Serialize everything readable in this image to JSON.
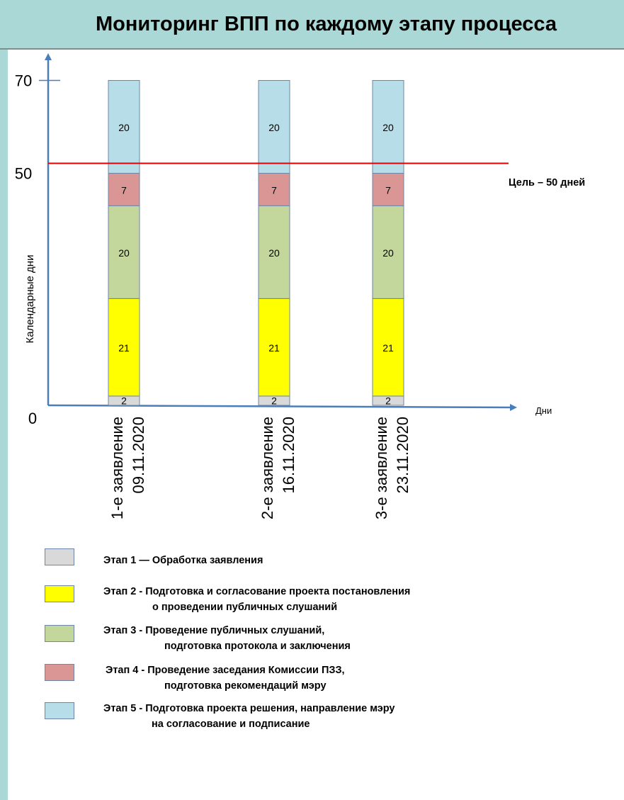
{
  "title": "Мониторинг ВПП по каждому этапу процесса",
  "chart_data": {
    "type": "bar",
    "stacked": true,
    "title": "Мониторинг ВПП по каждому этапу процесса",
    "xlabel": "Дни",
    "ylabel": "Календарные  дни",
    "ylim": [
      0,
      70
    ],
    "yticks": [
      "0",
      "50",
      "70"
    ],
    "grid": false,
    "categories": [
      "1-е заявление\n09.11.2020",
      "2-е заявление\n16.11.2020",
      "3-е заявление\n23.11.2020"
    ],
    "series": [
      {
        "name": "Этап 1 — Обработка заявления",
        "color": "#d9d9d9",
        "values": [
          2,
          2,
          2
        ]
      },
      {
        "name": "Этап 2 - Подготовка и согласование проекта постановления о проведении публичных слушаний",
        "color": "#ffff00",
        "values": [
          21,
          21,
          21
        ]
      },
      {
        "name": "Этап 3 - Проведение публичных слушаний, подготовка протокола и заключения",
        "color": "#c3d69b",
        "values": [
          20,
          20,
          20
        ]
      },
      {
        "name": "Этап 4 - Проведение заседания Комиссии ПЗЗ, подготовка рекомендаций мэру",
        "color": "#d99694",
        "values": [
          7,
          7,
          7
        ]
      },
      {
        "name": "Этап 5 - Подготовка проекта решения, направление мэру на согласование и подписание",
        "color": "#b7dde8",
        "values": [
          20,
          20,
          20
        ]
      }
    ],
    "target_line": {
      "value": 50,
      "label": "Цель – 50 дней",
      "color": "#e00000"
    },
    "legend": {
      "position": "bottom",
      "entries": [
        {
          "color": "#d9d9d9",
          "lines": [
            "Этап 1 — Обработка заявления"
          ]
        },
        {
          "color": "#ffff00",
          "lines": [
            "Этап 2 - Подготовка и согласование проекта постановления",
            "о проведении публичных слушаний"
          ]
        },
        {
          "color": "#c3d69b",
          "lines": [
            "Этап 3 - Проведение публичных слушаний,",
            "подготовка протокола и заключения"
          ]
        },
        {
          "color": "#d99694",
          "lines": [
            "Этап 4 - Проведение заседания Комиссии ПЗЗ,",
            "подготовка рекомендаций мэру"
          ]
        },
        {
          "color": "#b7dde8",
          "lines": [
            "Этап 5 - Подготовка проекта решения, направление мэру",
            "на согласование и подписание"
          ]
        }
      ]
    }
  }
}
